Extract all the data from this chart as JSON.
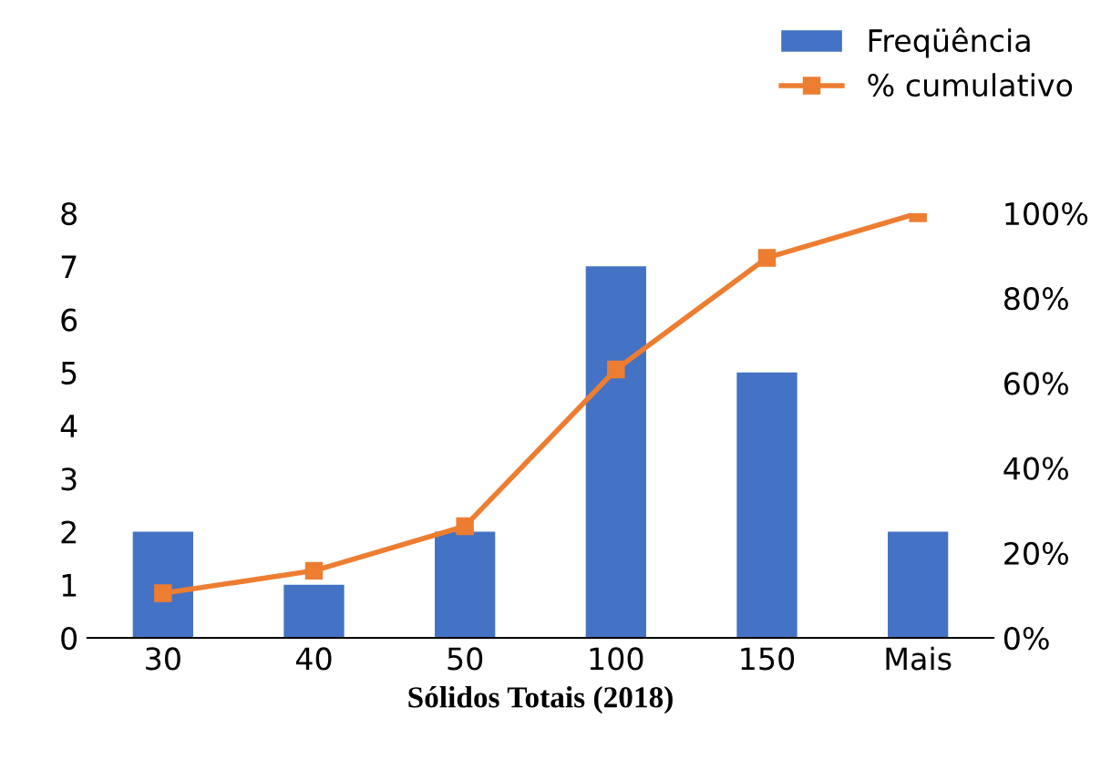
{
  "chart_data": {
    "type": "bar",
    "xlabel": "Sólidos Totais (2018)",
    "categories": [
      "30",
      "40",
      "50",
      "100",
      "150",
      "Mais"
    ],
    "series": [
      {
        "name": "Freqüência",
        "color": "#4472c4",
        "values": [
          2,
          1,
          2,
          7,
          5,
          2
        ]
      },
      {
        "name": "% cumulativo",
        "type": "line",
        "axis": "y2",
        "color": "#ed7d31",
        "marker": "square",
        "values": [
          10.5,
          15.8,
          26.3,
          63.2,
          89.5,
          100
        ]
      }
    ],
    "ylim": [
      0,
      8
    ],
    "yticks": [
      0,
      1,
      2,
      3,
      4,
      5,
      6,
      7,
      8
    ],
    "y2lim": [
      0,
      100
    ],
    "y2ticks": [
      {
        "value": 0,
        "label": "0%"
      },
      {
        "value": 20,
        "label": "20%"
      },
      {
        "value": 40,
        "label": "40%"
      },
      {
        "value": 60,
        "label": "60%"
      },
      {
        "value": 80,
        "label": "80%"
      },
      {
        "value": 100,
        "label": "100%"
      }
    ],
    "grid": false,
    "legend": "top right"
  }
}
